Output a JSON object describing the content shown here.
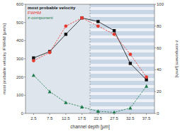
{
  "chart_data": {
    "type": "line",
    "x_label": "channel depth [µm]",
    "y_label": "most probable velocity /FWHM [µm/s]",
    "y2_label": "z-component [µm/s]",
    "x": [
      2.5,
      7.5,
      12.5,
      17.5,
      22.5,
      27.5,
      32.5,
      37.5
    ],
    "xlim": [
      0,
      40
    ],
    "xticks": [
      2.5,
      7.5,
      12.5,
      17.5,
      22.5,
      27.5,
      32.5,
      37.5
    ],
    "ylim": [
      0,
      600
    ],
    "yticks": [
      0,
      100,
      200,
      300,
      400,
      500,
      600
    ],
    "y2lim": [
      0,
      100
    ],
    "y2ticks": [
      0,
      20,
      40,
      60,
      80,
      100
    ],
    "legend": "upper left",
    "grid": false,
    "series": [
      {
        "name": "most probable velocity",
        "color": "#111111",
        "marker": "square",
        "line_style": "solid",
        "values": [
          305,
          340,
          435,
          525,
          505,
          455,
          275,
          185
        ]
      },
      {
        "name": "FWHM",
        "color": "#e53a30",
        "marker": "circle",
        "line_style": "dashed",
        "values": [
          290,
          335,
          480,
          525,
          480,
          435,
          325,
          200
        ]
      },
      {
        "name": "z-component",
        "color": "#1c7a4a",
        "marker": "triangle",
        "line_style": "dashed",
        "axis": "y2",
        "values": [
          35,
          20,
          10,
          6,
          2,
          1,
          5,
          25
        ]
      }
    ]
  }
}
